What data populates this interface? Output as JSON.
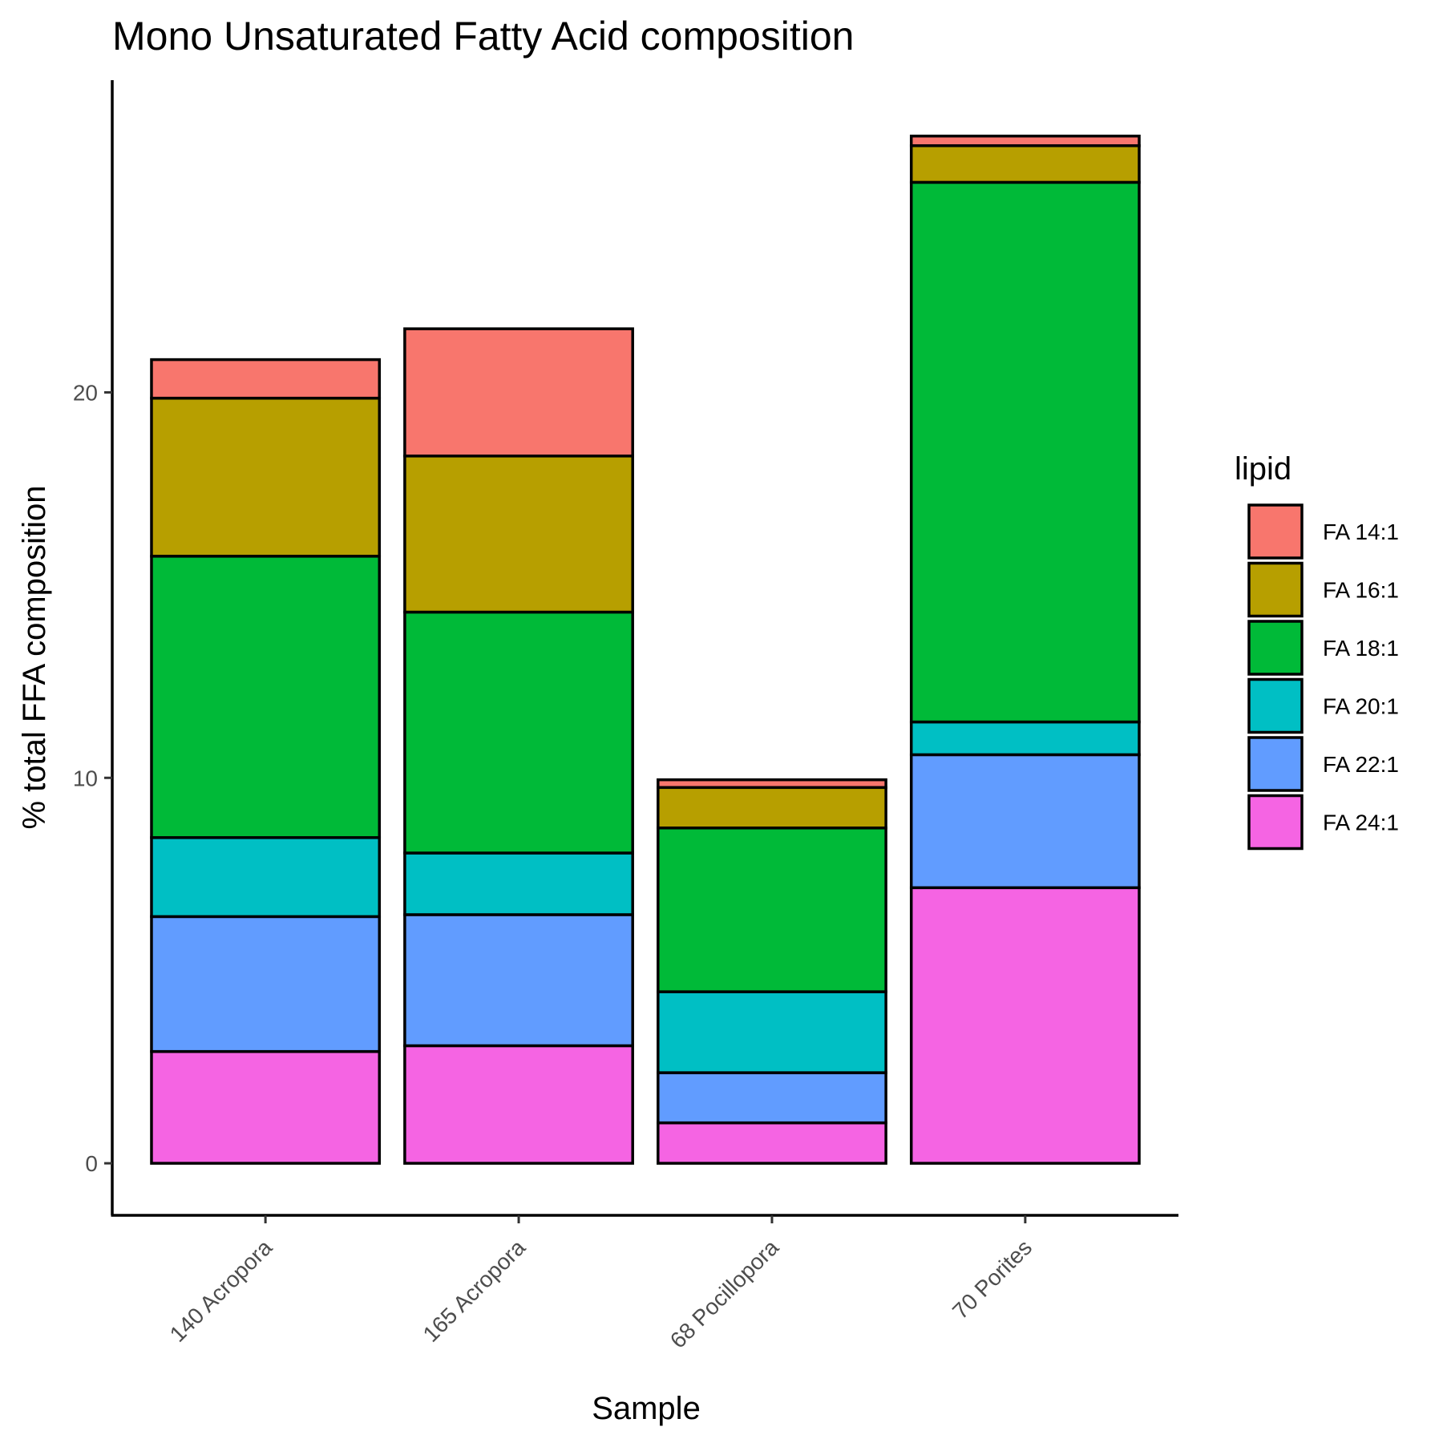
{
  "chart_data": {
    "type": "bar",
    "stacked": true,
    "title": "Mono Unsaturated Fatty Acid composition",
    "xlabel": "Sample",
    "ylabel": "% total FFA composition",
    "ylim": [
      -1.35,
      28.1
    ],
    "yticks": [
      0,
      10,
      20
    ],
    "grid": false,
    "legend_title": "lipid",
    "legend_position": "right",
    "categories": [
      "140 Acropora",
      "165 Acropora",
      "68 Pocillopora",
      "70 Porites"
    ],
    "series": [
      {
        "name": "FA 24:1",
        "color": "#F564E3",
        "values": [
          2.9,
          3.05,
          1.05,
          7.15
        ]
      },
      {
        "name": "FA 22:1",
        "color": "#619CFF",
        "values": [
          3.5,
          3.4,
          1.3,
          3.45
        ]
      },
      {
        "name": "FA 20:1",
        "color": "#00BFC4",
        "values": [
          2.05,
          1.6,
          2.1,
          0.85
        ]
      },
      {
        "name": "FA 18:1",
        "color": "#00BA38",
        "values": [
          7.3,
          6.25,
          4.25,
          14.0
        ]
      },
      {
        "name": "FA 16:1",
        "color": "#B79F00",
        "values": [
          4.1,
          4.05,
          1.05,
          0.95
        ]
      },
      {
        "name": "FA 14:1",
        "color": "#F8766D",
        "values": [
          1.0,
          3.3,
          0.2,
          0.25
        ]
      }
    ]
  }
}
